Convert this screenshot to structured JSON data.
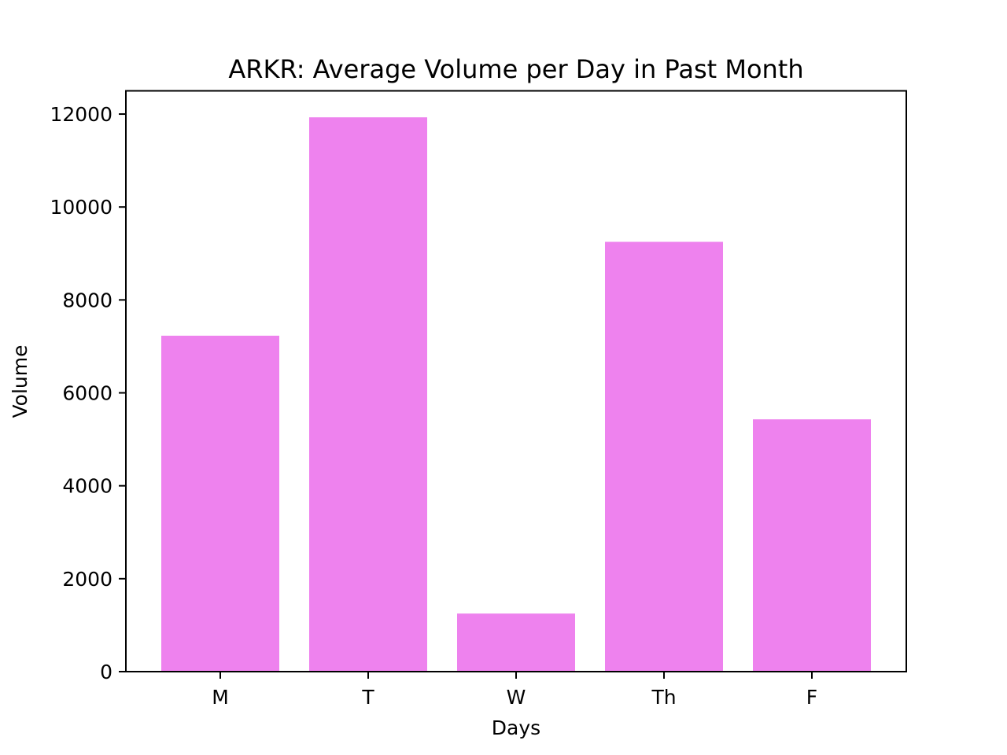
{
  "chart_data": {
    "type": "bar",
    "title": "ARKR: Average Volume per Day in Past Month",
    "xlabel": "Days",
    "ylabel": "Volume",
    "categories": [
      "M",
      "T",
      "W",
      "Th",
      "F"
    ],
    "values": [
      7230,
      11930,
      1250,
      9250,
      5430
    ],
    "ylim": [
      0,
      12500
    ],
    "yticks": [
      0,
      2000,
      4000,
      6000,
      8000,
      10000,
      12000
    ],
    "bar_color": "#ee82ee",
    "grid": false,
    "legend": "none"
  }
}
